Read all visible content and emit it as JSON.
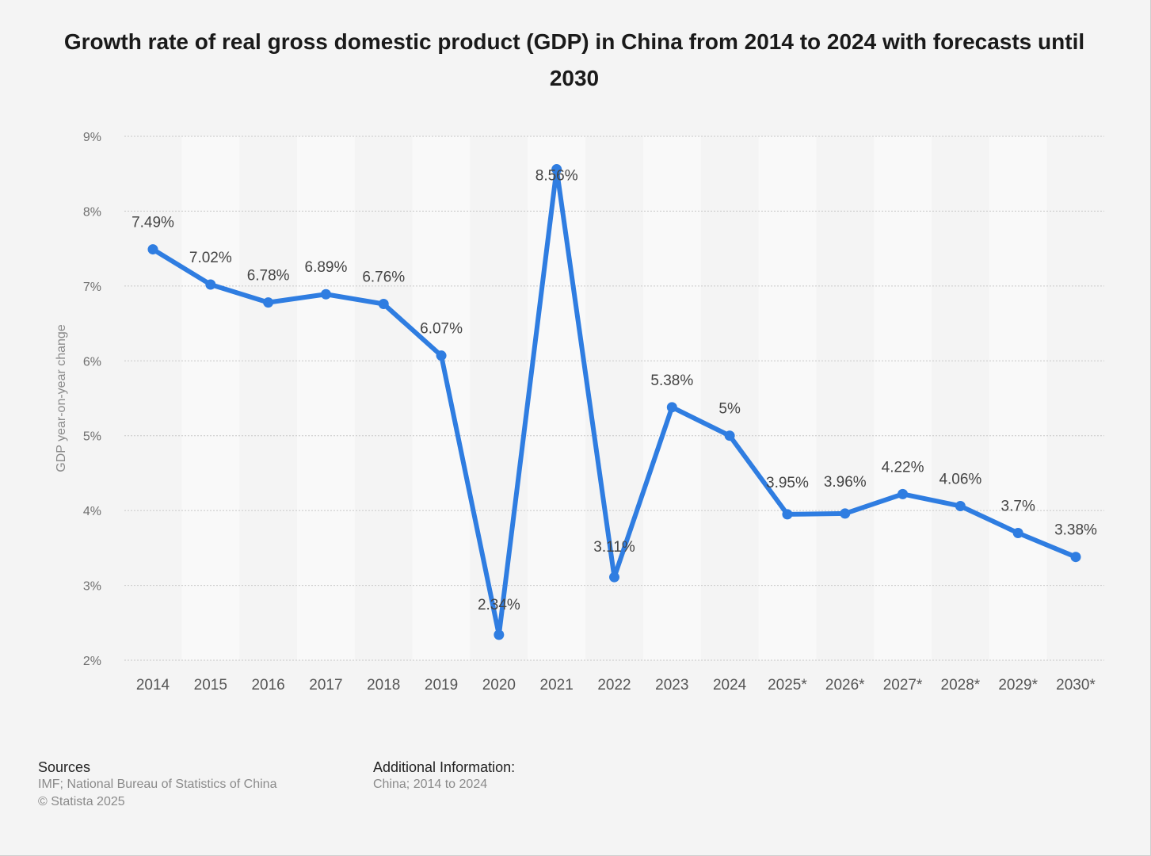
{
  "title": "Growth rate of real gross domestic product (GDP) in China from 2014 to 2024 with forecasts until 2030",
  "colors": {
    "line": "#2f7de1",
    "band": "#f9f9f9",
    "grid": "#c8c8c8",
    "tick_text": "#6f6f6f",
    "label_text": "#444444"
  },
  "chart_data": {
    "type": "line",
    "title": "Growth rate of real gross domestic product (GDP) in China from 2014 to 2024 with forecasts until 2030",
    "xlabel": "",
    "ylabel": "GDP year-on-year change",
    "ylim": [
      2,
      9
    ],
    "y_ticks": [
      {
        "value": 9,
        "label": "9%"
      },
      {
        "value": 8,
        "label": "8%"
      },
      {
        "value": 7,
        "label": "7%"
      },
      {
        "value": 6,
        "label": "6%"
      },
      {
        "value": 5,
        "label": "5%"
      },
      {
        "value": 4,
        "label": "4%"
      },
      {
        "value": 3,
        "label": "3%"
      },
      {
        "value": 2,
        "label": "2%"
      }
    ],
    "categories": [
      "2014",
      "2015",
      "2016",
      "2017",
      "2018",
      "2019",
      "2020",
      "2021",
      "2022",
      "2023",
      "2024",
      "2025*",
      "2026*",
      "2027*",
      "2028*",
      "2029*",
      "2030*"
    ],
    "series": [
      {
        "name": "GDP year-on-year change",
        "values": [
          7.49,
          7.02,
          6.78,
          6.89,
          6.76,
          6.07,
          2.34,
          8.56,
          3.11,
          5.38,
          5,
          3.95,
          3.96,
          4.22,
          4.06,
          3.7,
          3.38
        ],
        "labels": [
          "7.49%",
          "7.02%",
          "6.78%",
          "6.89%",
          "6.76%",
          "6.07%",
          "2.34%",
          "8.56%",
          "3.11%",
          "5.38%",
          "5%",
          "3.95%",
          "3.96%",
          "4.22%",
          "4.06%",
          "3.7%",
          "3.38%"
        ]
      }
    ],
    "grid": true,
    "legend": "none"
  },
  "footer": {
    "sources_heading": "Sources",
    "sources_line1": "IMF; National Bureau of Statistics of China",
    "sources_line2": "© Statista 2025",
    "additional_heading": "Additional Information:",
    "additional_line1": "China; 2014 to 2024"
  }
}
